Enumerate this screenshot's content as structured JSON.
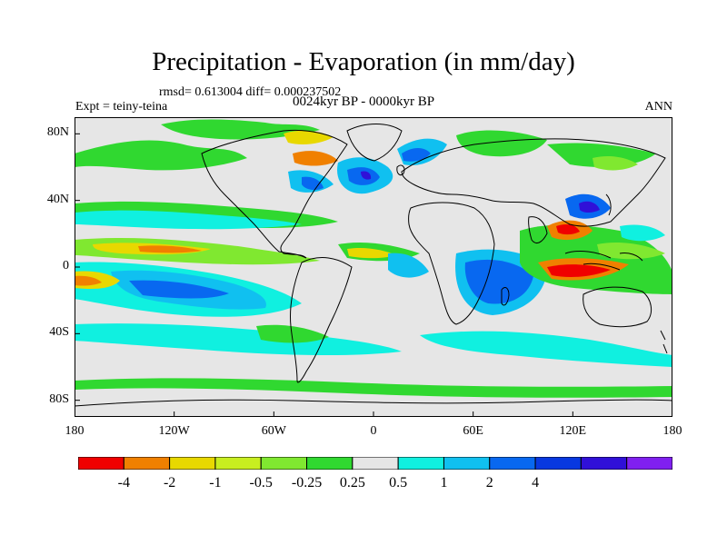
{
  "title": "Precipitation - Evaporation (in mm/day)",
  "stats": "rmsd= 0.613004  diff= 0.000237502",
  "expt": "Expt = teiny-teina",
  "subtitle": "0024kyr BP - 0000kyr BP",
  "season": "ANN",
  "y_ticks": [
    {
      "lat": 80,
      "label": "80N"
    },
    {
      "lat": 40,
      "label": "40N"
    },
    {
      "lat": 0,
      "label": "0"
    },
    {
      "lat": -40,
      "label": "40S"
    },
    {
      "lat": -80,
      "label": "80S"
    }
  ],
  "x_ticks": [
    {
      "lon": -180,
      "label": "180"
    },
    {
      "lon": -120,
      "label": "120W"
    },
    {
      "lon": -60,
      "label": "60W"
    },
    {
      "lon": 0,
      "label": "0"
    },
    {
      "lon": 60,
      "label": "60E"
    },
    {
      "lon": 120,
      "label": "120E"
    },
    {
      "lon": 180,
      "label": "180"
    }
  ],
  "colorbar": {
    "colors": [
      "#f00000",
      "#f08000",
      "#e8d800",
      "#c8ee20",
      "#80e830",
      "#30d830",
      "#e6e6e6",
      "#10f0e0",
      "#10c0f0",
      "#0868f0",
      "#0838e0",
      "#3010d8",
      "#8020f0"
    ],
    "labels": [
      "-4",
      "-2",
      "-1",
      "-0.5",
      "-0.25",
      "0.25",
      "0.5",
      "1",
      "2",
      "4"
    ]
  },
  "colors": {
    "land_outline": "#000000",
    "background_field": "#e6e6e6"
  }
}
